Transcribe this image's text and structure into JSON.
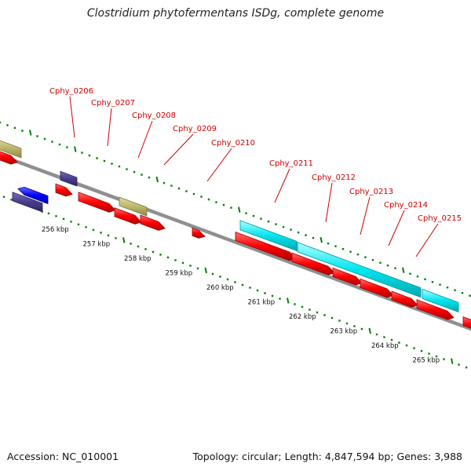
{
  "title": "Clostridium phytofermentans ISDg, complete genome",
  "footer": {
    "accession": "Accession: NC_010001",
    "topology": "Topology: circular; Length: 4,847,594 bp; Genes: 3,988"
  },
  "colors": {
    "forward_cds": "#ff0000",
    "reverse_cds": "#0000ff",
    "dark_gene": "#483d8b",
    "tan_gene": "#bdb76b",
    "cyan_feature": "#00e5ee",
    "backbone": "#8f8f8f",
    "ticks": "#008000",
    "gene_label": "#cc0000"
  },
  "gene_labels": [
    {
      "name": "Cphy_0206"
    },
    {
      "name": "Cphy_0207"
    },
    {
      "name": "Cphy_0208"
    },
    {
      "name": "Cphy_0209"
    },
    {
      "name": "Cphy_0210"
    },
    {
      "name": "Cphy_0211"
    },
    {
      "name": "Cphy_0212"
    },
    {
      "name": "Cphy_0213"
    },
    {
      "name": "Cphy_0214"
    },
    {
      "name": "Cphy_0215"
    }
  ],
  "position_labels": [
    "256 kbp",
    "257 kbp",
    "258 kbp",
    "259 kbp",
    "260 kbp",
    "261 kbp",
    "262 kbp",
    "263 kbp",
    "264 kbp",
    "265 kbp"
  ]
}
